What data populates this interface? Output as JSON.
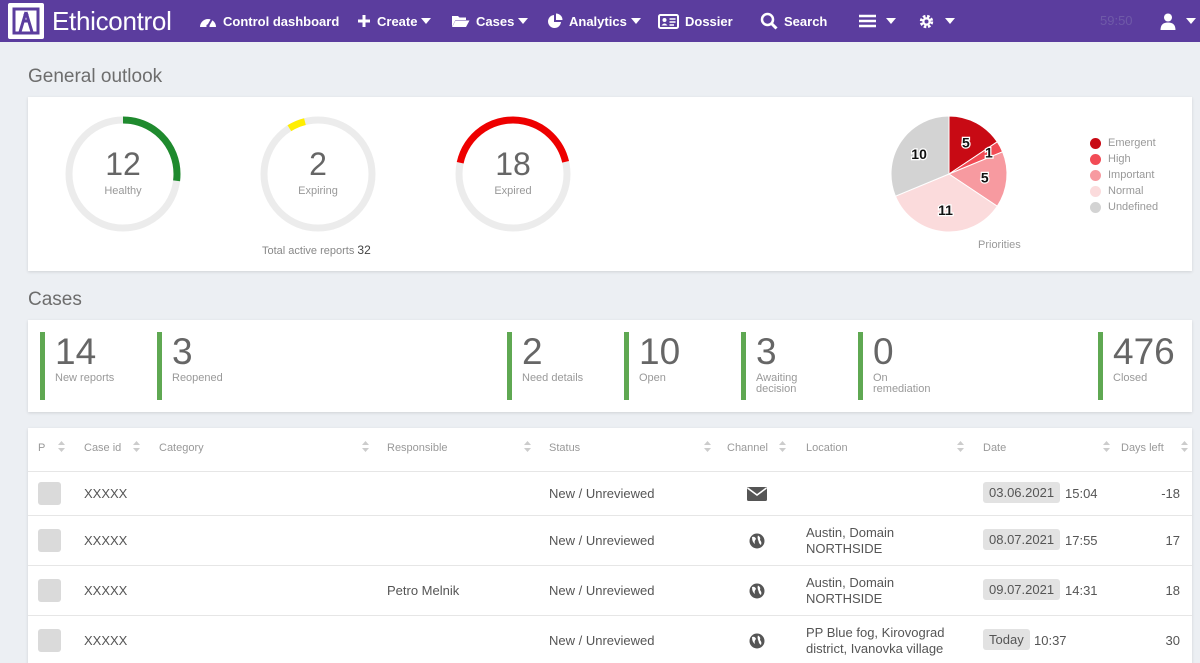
{
  "nav": {
    "brand": "Ethicontrol",
    "items": {
      "control_dashboard": "Control dashboard",
      "create": "Create",
      "cases": "Cases",
      "analytics": "Analytics",
      "dossier": "Dossier",
      "search": "Search"
    },
    "timer": "59:50",
    "accent": "#5b3d9e"
  },
  "outlook": {
    "title": "General outlook",
    "gauges": [
      {
        "value": "12",
        "label": "Healthy",
        "fraction": 0.27,
        "color": "#1f8a2e"
      },
      {
        "value": "2",
        "label": "Expiring",
        "fraction": 0.05,
        "color": "#ffee00"
      },
      {
        "value": "18",
        "label": "Expired",
        "fraction": 0.43,
        "color": "#ee0000"
      }
    ],
    "total_label": "Total active reports",
    "total_value": "32"
  },
  "chart_data": {
    "type": "pie",
    "caption": "Priorities",
    "legend_placement": "right",
    "slices": [
      {
        "label": "Emergent",
        "value": 5,
        "color": "#c80a14"
      },
      {
        "label": "High",
        "value": 1,
        "color": "#f24b55"
      },
      {
        "label": "Important",
        "value": 5,
        "color": "#f79aa0"
      },
      {
        "label": "Normal",
        "value": 11,
        "color": "#fbdbdc"
      },
      {
        "label": "Undefined",
        "value": 10,
        "color": "#d3d3d3"
      }
    ]
  },
  "cases": {
    "title": "Cases",
    "counters": [
      {
        "value": "14",
        "label": "New reports"
      },
      {
        "value": "3",
        "label": "Reopened"
      },
      {
        "value": "2",
        "label": "Need details"
      },
      {
        "value": "10",
        "label": "Open"
      },
      {
        "value": "3",
        "label": "Awaiting decision"
      },
      {
        "value": "0",
        "label": "On remediation"
      },
      {
        "value": "476",
        "label": "Closed"
      }
    ]
  },
  "table": {
    "headers": {
      "p": "P",
      "case_id": "Case id",
      "category": "Category",
      "responsible": "Responsible",
      "status": "Status",
      "channel": "Channel",
      "location": "Location",
      "date": "Date",
      "days_left": "Days left"
    },
    "rows": [
      {
        "case_id": "XXXXX",
        "responsible": "",
        "status": "New / Unreviewed",
        "channel": "mail-icon",
        "location_1": "",
        "location_2": "",
        "date": "03.06.2021",
        "time": "15:04",
        "days_left": "-18"
      },
      {
        "case_id": "XXXXX",
        "responsible": "",
        "status": "New / Unreviewed",
        "channel": "globe-icon",
        "location_1": "Austin, Domain",
        "location_2": "NORTHSIDE",
        "date": "08.07.2021",
        "time": "17:55",
        "days_left": "17"
      },
      {
        "case_id": "XXXXX",
        "responsible": "Petro Melnik",
        "status": "New / Unreviewed",
        "channel": "globe-icon",
        "location_1": "Austin, Domain",
        "location_2": "NORTHSIDE",
        "date": "09.07.2021",
        "time": "14:31",
        "days_left": "18"
      },
      {
        "case_id": "XXXXX",
        "responsible": "",
        "status": "New / Unreviewed",
        "channel": "globe-icon",
        "location_1": "PP Blue fog, Kirovograd",
        "location_2": "district, Ivanovka village",
        "date": "Today",
        "time": "10:37",
        "days_left": "30"
      }
    ]
  }
}
